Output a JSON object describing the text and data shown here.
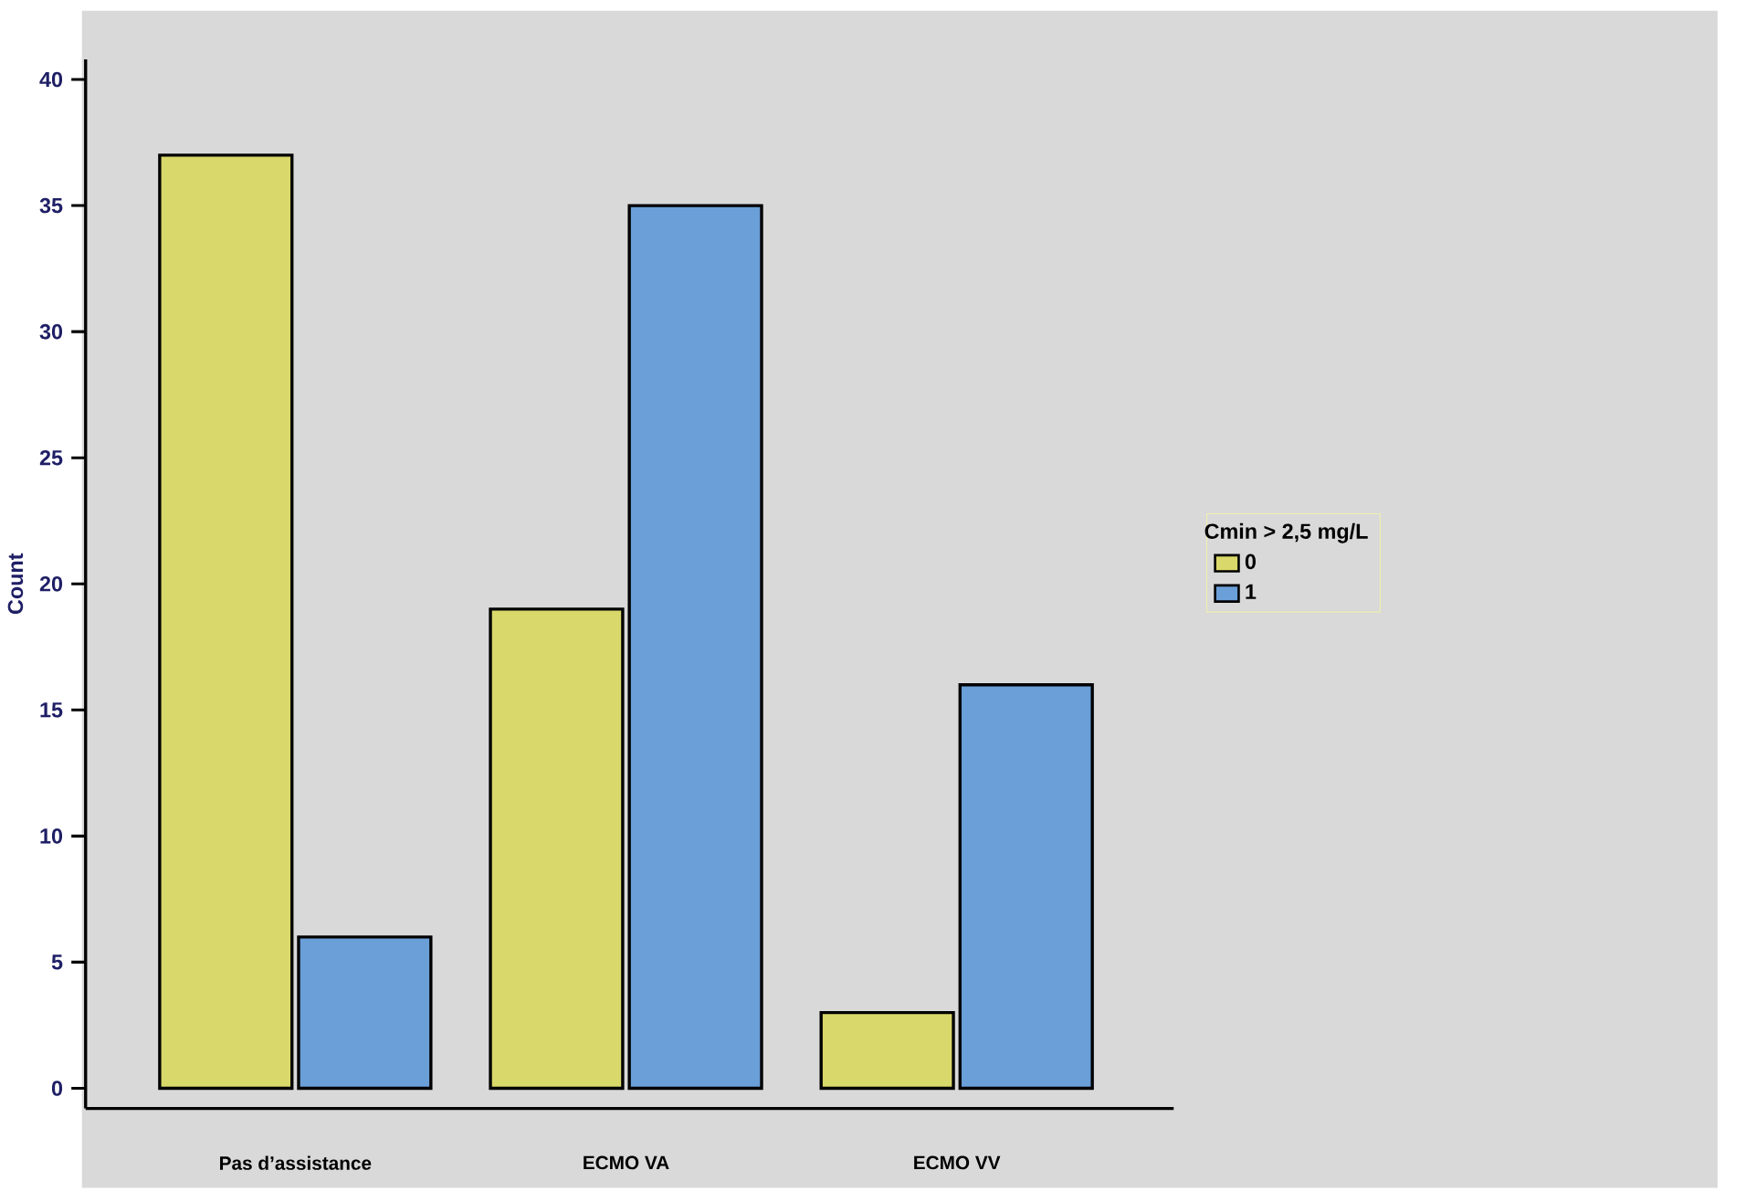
{
  "chart_data": {
    "type": "bar",
    "ylabel": "Count",
    "legend_title": "Cmin > 2,5 mg/L",
    "categories": [
      "Pas d’assistance",
      "ECMO VA",
      "ECMO VV"
    ],
    "series": [
      {
        "name": "0",
        "color": "#d9d86a",
        "values": [
          37,
          19,
          3
        ]
      },
      {
        "name": "1",
        "color": "#6a9fd8",
        "values": [
          6,
          35,
          16
        ]
      }
    ],
    "ylim": [
      -0.8,
      40.8
    ],
    "yticks": [
      0,
      5,
      10,
      15,
      20,
      25,
      30,
      35,
      40
    ],
    "grid": false,
    "legend": "right"
  }
}
